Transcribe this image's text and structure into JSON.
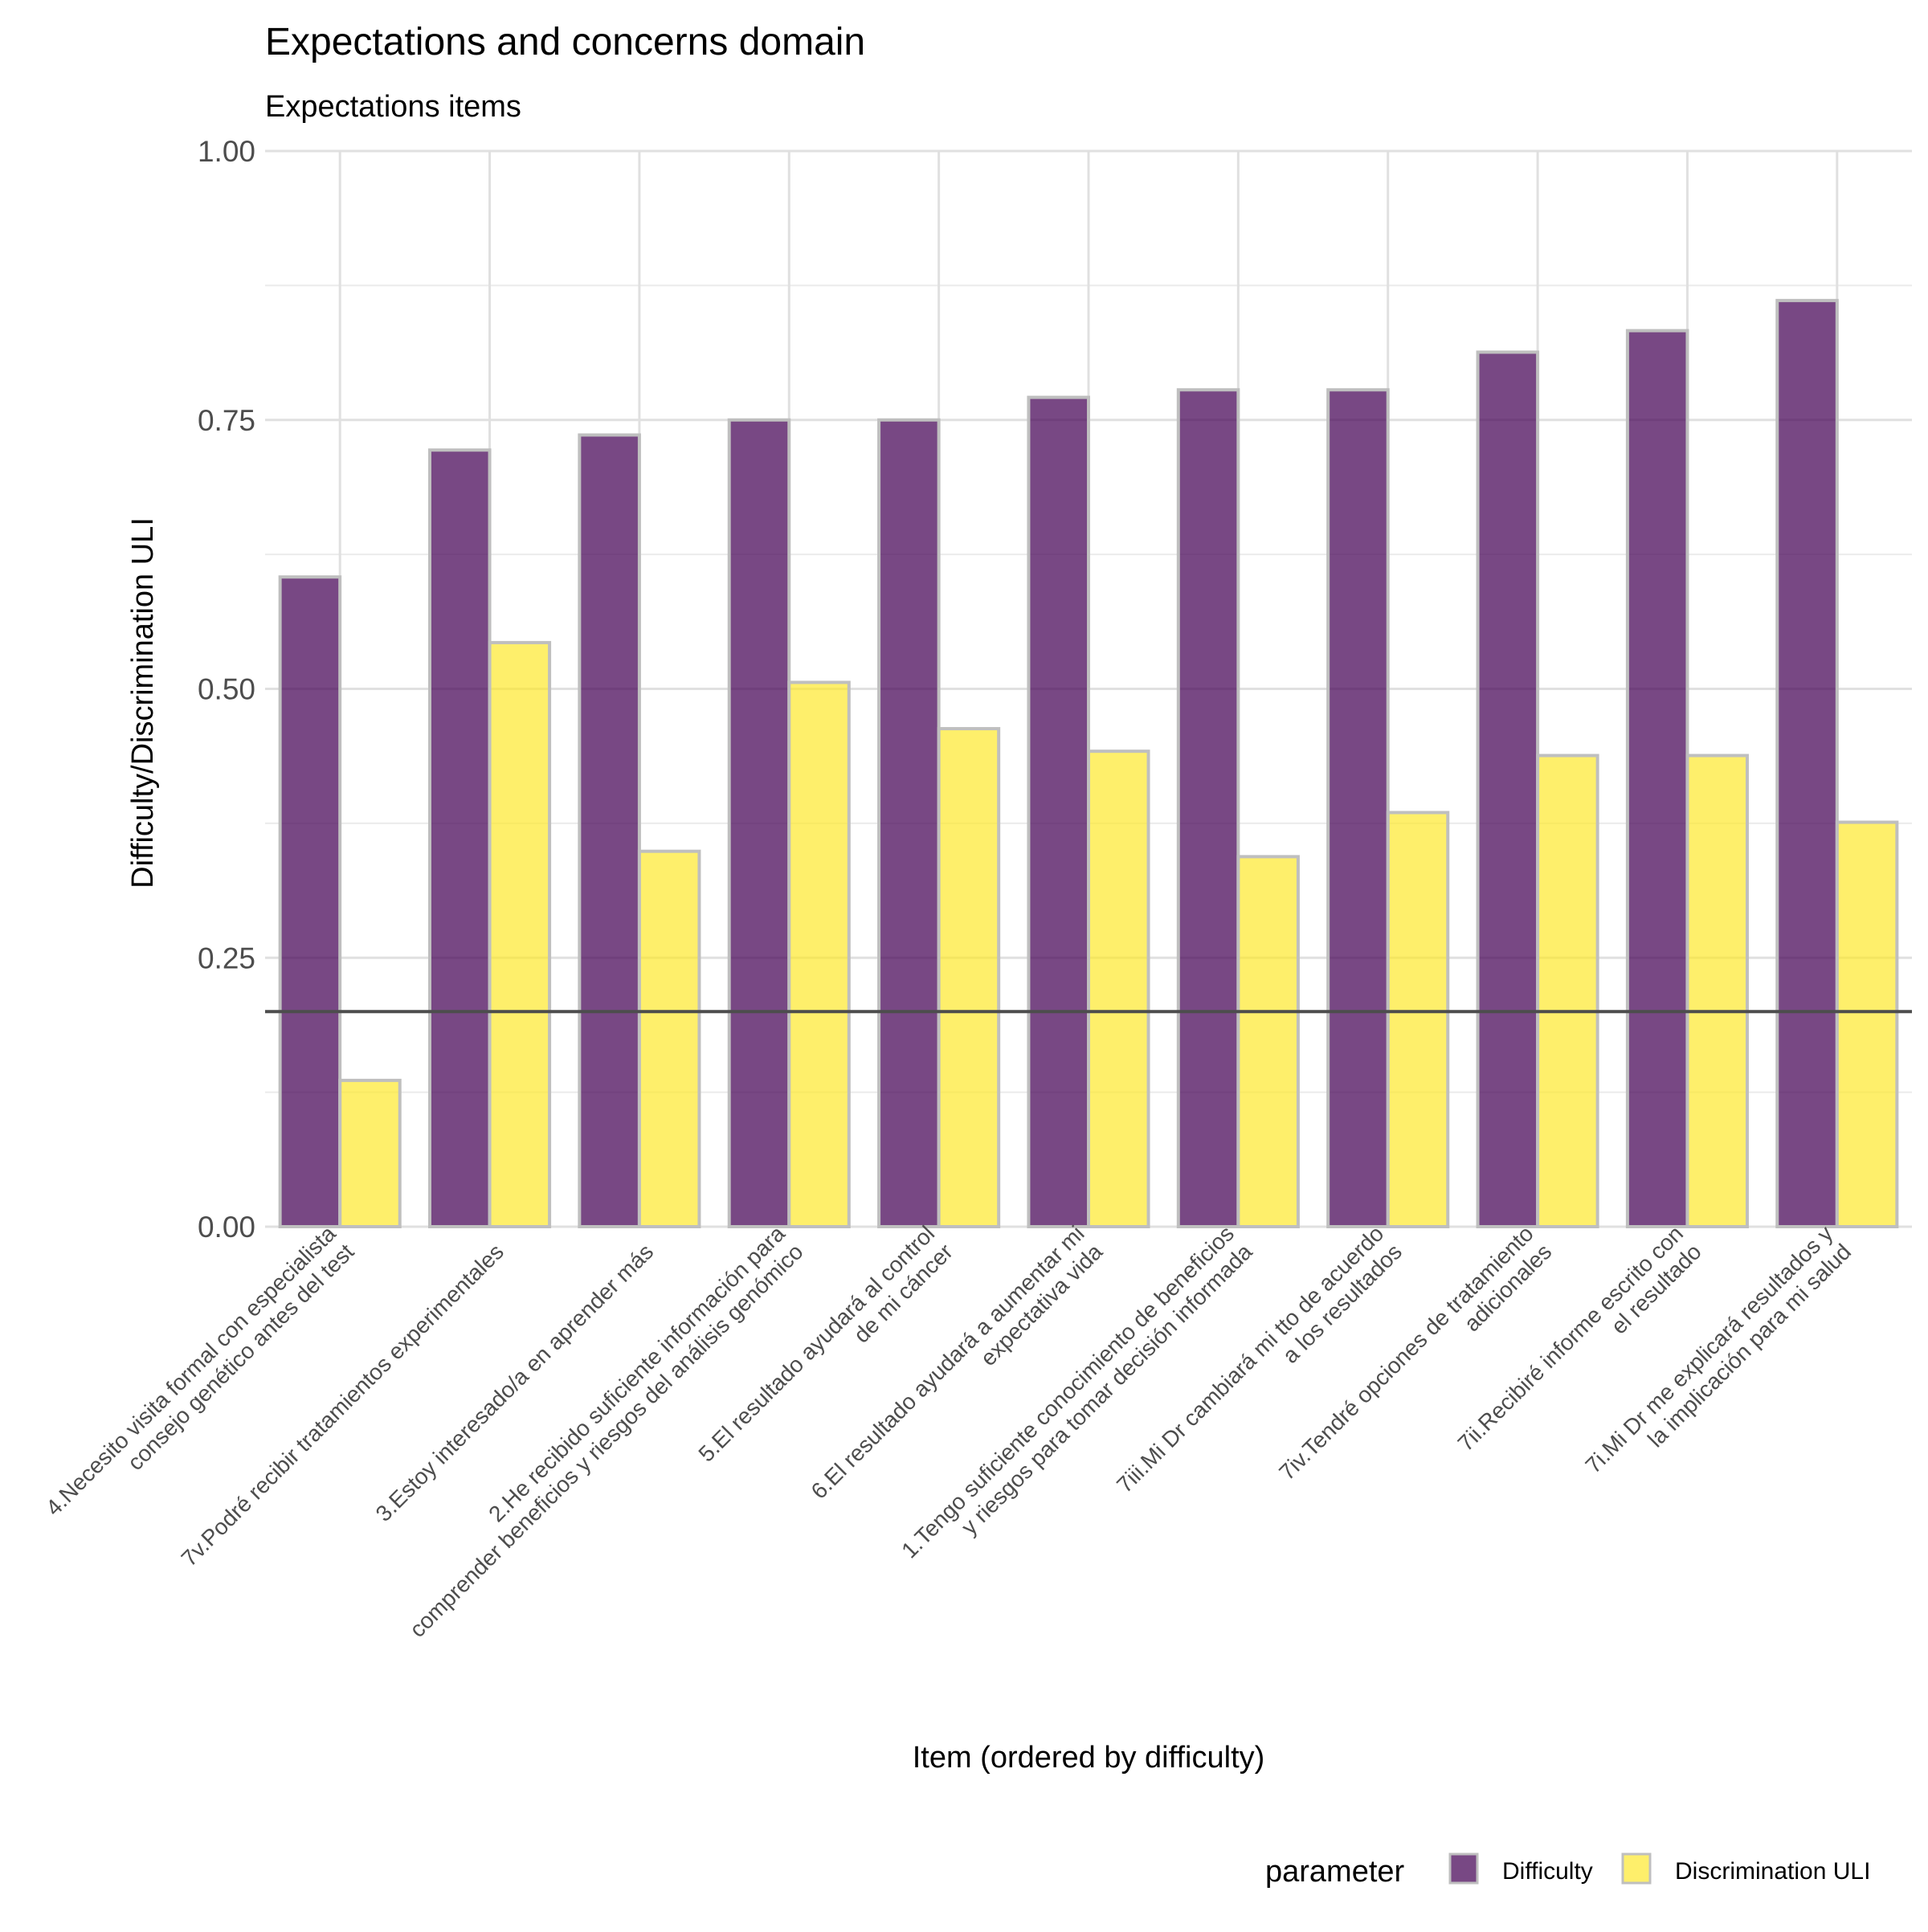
{
  "chart_data": {
    "type": "bar",
    "title": "Expectations and concerns domain",
    "subtitle": "Expectations items",
    "xlabel": "Item (ordered by difficulty)",
    "ylabel": "Difficulty/Discrimination ULI",
    "ylim": [
      0,
      1
    ],
    "yticks": [
      "0.00",
      "0.25",
      "0.50",
      "0.75",
      "1.00"
    ],
    "grid": true,
    "reference_line": 0.2,
    "legend": {
      "title": "parameter",
      "position": "bottom-right"
    },
    "categories": [
      [
        "4.Necesito visita formal con especialista",
        "consejo genético antes del test"
      ],
      [
        "7v.Podré recibir tratamientos experimentales"
      ],
      [
        "3.Estoy interesado/a en aprender más"
      ],
      [
        "2.He recibido suficiente información para",
        "comprender beneficios y riesgos del análisis genómico"
      ],
      [
        "5.El resultado ayudará al control",
        "de mi cáncer"
      ],
      [
        "6.El resultado ayudará a aumentar mi",
        "expectativa vida"
      ],
      [
        "1.Tengo suficiente conocimiento de beneficios",
        "y riesgos para tomar decisión informada"
      ],
      [
        "7iii.Mi Dr cambiará mi tto de acuerdo",
        "a los resultados"
      ],
      [
        "7iv.Tendré opciones de tratamiento",
        "adicionales"
      ],
      [
        "7ii.Recibiré informe escrito con",
        "el resultado"
      ],
      [
        "7i.Mi Dr me explicará resultados y",
        "la implicación para mi salud"
      ]
    ],
    "series": [
      {
        "name": "Difficulty",
        "color": "#440154",
        "values": [
          0.604,
          0.722,
          0.736,
          0.75,
          0.75,
          0.771,
          0.778,
          0.778,
          0.813,
          0.833,
          0.861
        ]
      },
      {
        "name": "Discrimination ULI",
        "color": "#FDE725",
        "values": [
          0.136,
          0.543,
          0.349,
          0.506,
          0.463,
          0.442,
          0.344,
          0.385,
          0.438,
          0.438,
          0.376
        ]
      }
    ]
  }
}
